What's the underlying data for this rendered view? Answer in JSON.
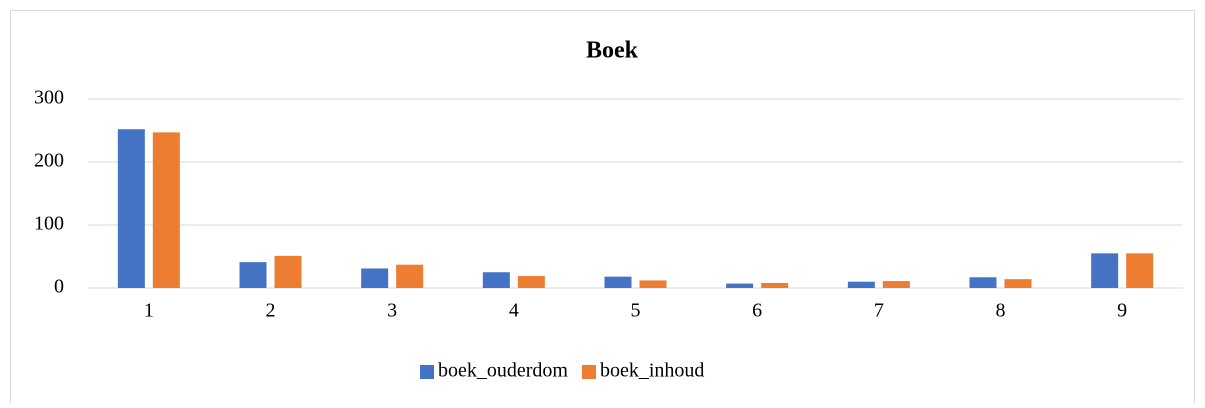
{
  "chart_data": {
    "type": "bar",
    "title": "Boek",
    "categories": [
      "1",
      "2",
      "3",
      "4",
      "5",
      "6",
      "7",
      "8",
      "9"
    ],
    "series": [
      {
        "name": "boek_ouderdom",
        "color": "#4472c4",
        "values": [
          252,
          41,
          31,
          25,
          18,
          7,
          10,
          17,
          55
        ]
      },
      {
        "name": "boek_inhoud",
        "color": "#ed7d31",
        "values": [
          247,
          51,
          37,
          19,
          12,
          8,
          11,
          14,
          55
        ]
      }
    ],
    "ylim": [
      0,
      300
    ],
    "yticks": [
      0,
      100,
      200,
      300
    ],
    "grid": true,
    "legend": "bottom"
  }
}
